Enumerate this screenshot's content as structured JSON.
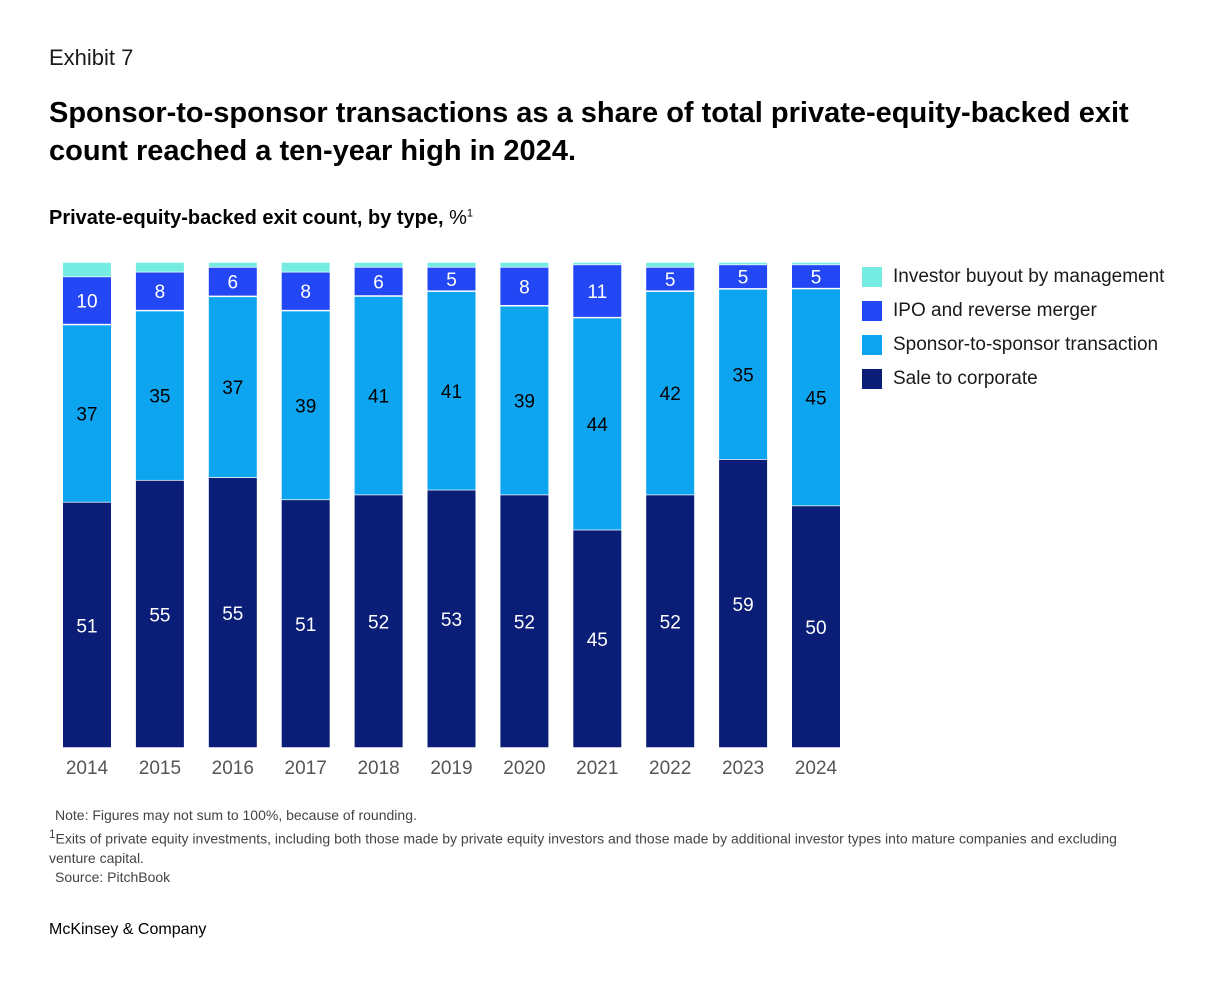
{
  "header": {
    "exhibit": "Exhibit 7",
    "title": "Sponsor-to-sponsor transactions as a share of total private-equity-backed exit count reached a ten-year high in 2024.",
    "subtitle": "Private-equity-backed exit count, by type,",
    "subtitle_unit": "%",
    "subtitle_footnote_mark": "1"
  },
  "chart_data": {
    "type": "bar",
    "stacked": true,
    "categories": [
      "2014",
      "2015",
      "2016",
      "2017",
      "2018",
      "2019",
      "2020",
      "2021",
      "2022",
      "2023",
      "2024"
    ],
    "series": [
      {
        "name": "Sale to corporate",
        "color": "#0a1e78",
        "values": [
          51,
          55,
          55,
          51,
          52,
          53,
          52,
          45,
          52,
          59,
          50
        ],
        "labels": [
          "51",
          "55",
          "55",
          "51",
          "52",
          "53",
          "52",
          "45",
          "52",
          "59",
          "50"
        ]
      },
      {
        "name": "Sponsor-to-sponsor transaction",
        "color": "#0ea5f0",
        "values": [
          37,
          35,
          37,
          39,
          41,
          41,
          39,
          44,
          42,
          35,
          45
        ],
        "labels": [
          "37",
          "35",
          "37",
          "39",
          "41",
          "41",
          "39",
          "44",
          "42",
          "35",
          "45"
        ]
      },
      {
        "name": "IPO and reverse merger",
        "color": "#2447f5",
        "values": [
          10,
          8,
          6,
          8,
          6,
          5,
          8,
          11,
          5,
          5,
          5
        ],
        "labels": [
          "10",
          "8",
          "6",
          "8",
          "6",
          "5",
          "8",
          "11",
          "5",
          "5",
          "5"
        ]
      },
      {
        "name": "Investor buyout by management",
        "color": "#74ece2",
        "values": [
          3,
          2,
          1,
          2,
          1,
          1,
          1,
          0.5,
          1,
          0.5,
          0.5
        ],
        "labels": [
          "",
          "",
          "",
          "",
          "",
          "",
          "",
          "",
          "",
          "",
          ""
        ]
      }
    ],
    "legend_order": [
      "Investor buyout by management",
      "IPO and reverse merger",
      "Sponsor-to-sponsor transaction",
      "Sale to corporate"
    ],
    "legend_position": "right",
    "ylim": [
      0,
      100
    ],
    "grid": false
  },
  "legend": {
    "items": [
      {
        "label": "Investor buyout by management",
        "color": "#74ece2"
      },
      {
        "label": "IPO and reverse merger",
        "color": "#2447f5"
      },
      {
        "label": "Sponsor-to-sponsor transaction",
        "color": "#0ea5f0"
      },
      {
        "label": "Sale to corporate",
        "color": "#0a1e78"
      }
    ]
  },
  "notes": {
    "note": "Note: Figures may not sum to 100%, because of rounding.",
    "footnote_mark": "1",
    "footnote": "Exits of private equity investments, including both those made by private equity investors and those made by additional investor types into mature companies and excluding venture capital.",
    "source": "Source: PitchBook"
  },
  "brand": {
    "name": "McKinsey & Company"
  }
}
